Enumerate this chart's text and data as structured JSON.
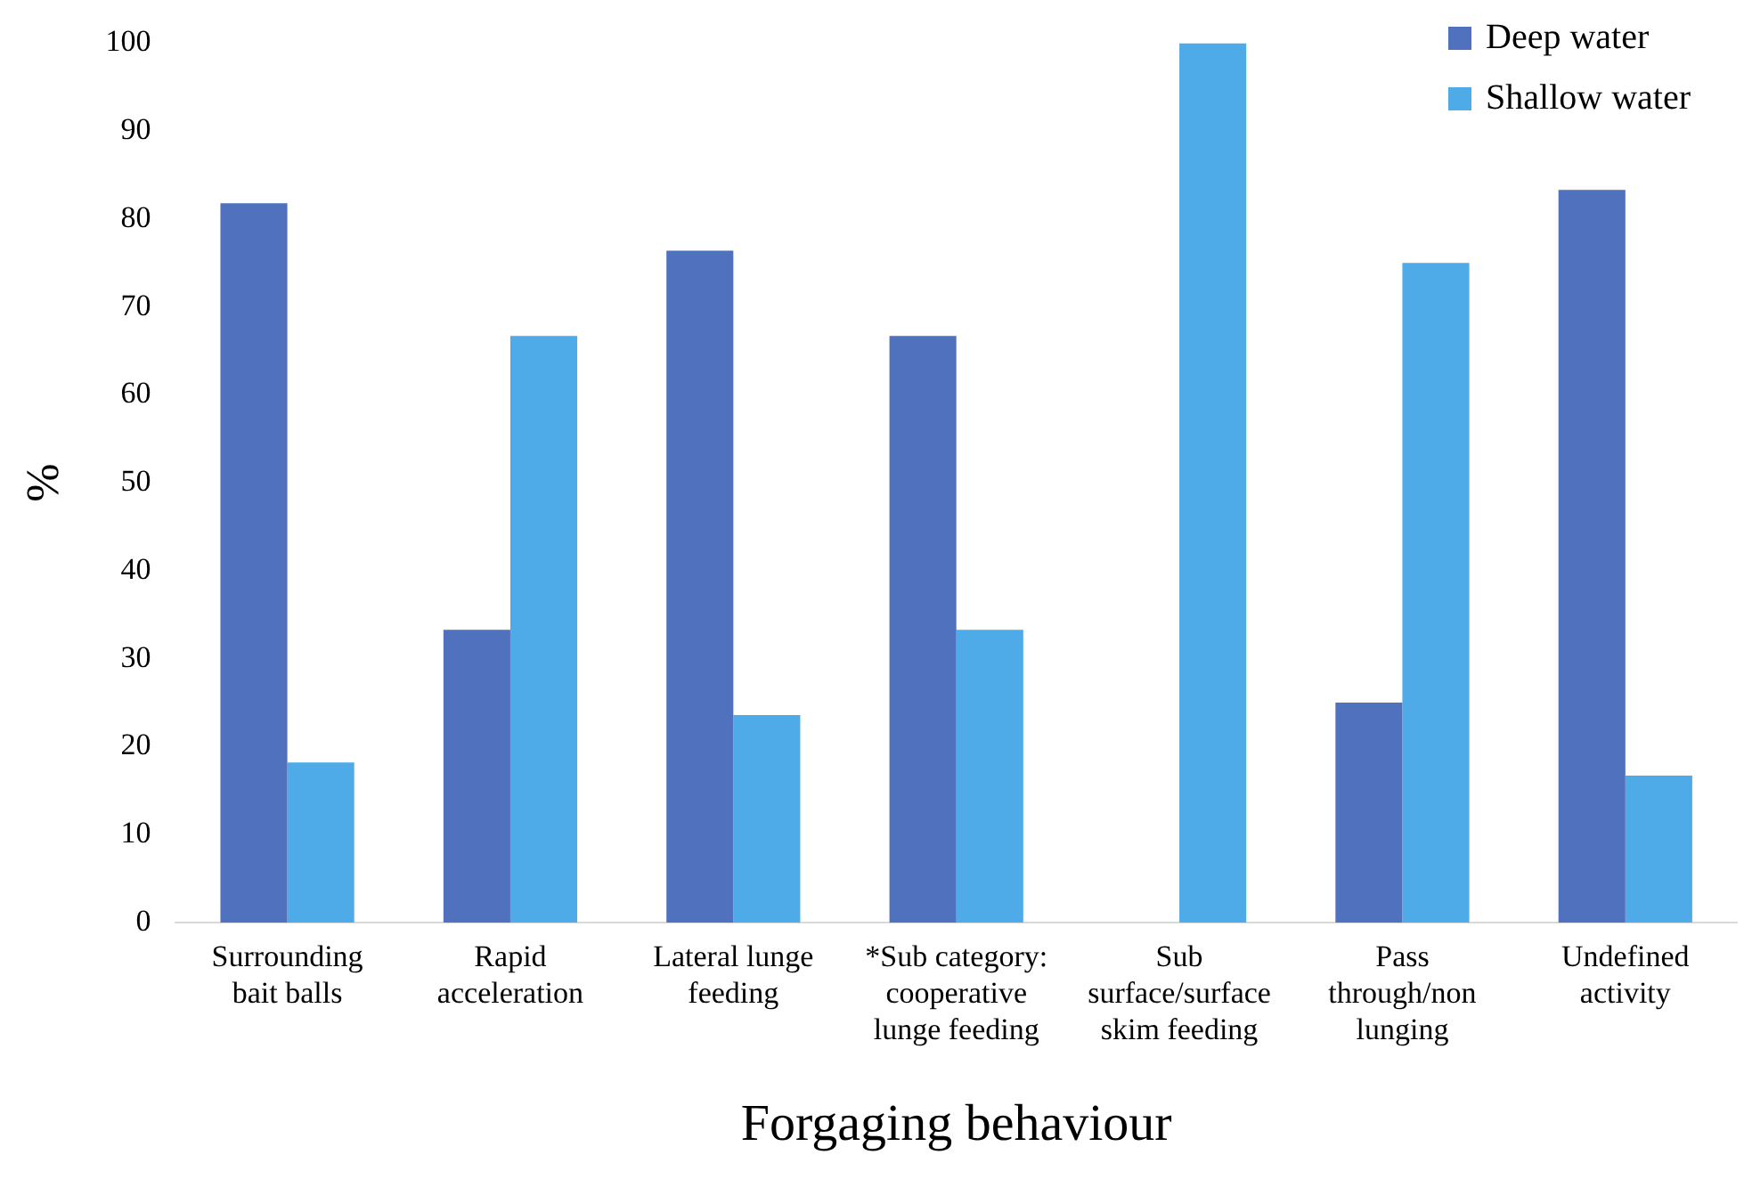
{
  "chart_data": {
    "type": "bar",
    "xlabel": "Forgaging behaviour",
    "ylabel": "%",
    "categories": [
      "Surrounding\nbait balls",
      "Rapid\nacceleration",
      "Lateral lunge\nfeeding",
      "*Sub category:\ncooperative\nlunge feeding",
      "Sub\nsurface/surface\nskim feeding",
      "Pass\nthrough/non\nlunging",
      "Undefined\nactivity"
    ],
    "series": [
      {
        "name": "Deep water",
        "color": "#4f71be",
        "values": [
          81.8,
          33.3,
          76.4,
          66.7,
          0,
          25,
          83.3
        ]
      },
      {
        "name": "Shallow water",
        "color": "#4eabe8",
        "values": [
          18.2,
          66.7,
          23.6,
          33.3,
          100,
          75,
          16.7
        ]
      }
    ],
    "ylim": [
      0,
      100
    ],
    "yticks": [
      0,
      10,
      20,
      30,
      40,
      50,
      60,
      70,
      80,
      90,
      100
    ],
    "grid": false,
    "legend": "top right"
  }
}
